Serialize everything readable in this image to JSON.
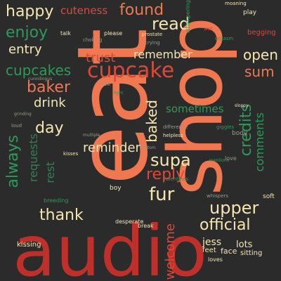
{
  "words": {
    "eat": "eat",
    "shop": "shop",
    "audio": "audio",
    "cupcake": "cupcake",
    "always": "always",
    "supa": "supa",
    "read": "read",
    "found": "found",
    "happy": "happy",
    "cuteness": "cuteness",
    "enjoy": "enjoy",
    "entry": "entry",
    "cupcakes": "cupcakes",
    "trust": "trust",
    "remember": "remember",
    "open": "open",
    "sum": "sum",
    "baker": "baker",
    "drink": "drink",
    "day": "day",
    "baked": "baked",
    "sometimes": "sometimes",
    "credits": "credits",
    "comments": "comments",
    "reminder": "reminder",
    "requests": "requests",
    "rest": "rest",
    "reply": "reply",
    "fur": "fur",
    "upper": "upper",
    "thank": "thank",
    "official": "official",
    "welcome": "welcome",
    "jess": "jess",
    "begging": "begging",
    "play": "play",
    "moaning": "moaning",
    "talk": "talk",
    "please": "please",
    "choking": "choking",
    "prostate": "prostate",
    "whimpering": "whimpering",
    "crying": "crying",
    "wet": "wet",
    "orgasm": "orgasm",
    "lots": "lots",
    "face": "face",
    "sitting": "sitting",
    "feet": "feet",
    "loves": "loves",
    "kissing": "kissing",
    "breeding": "breeding",
    "desperate": "desperate",
    "break": "break",
    "whispers": "whispers",
    "soft": "soft",
    "body": "body",
    "love": "love",
    "giggles": "giggles",
    "sloppy": "sloppy",
    "difference": "difference",
    "helpless": "helpless",
    "mentions": "mentions",
    "valentines": "valentines",
    "kisses": "kisses",
    "multiple": "multiple",
    "boy": "boy",
    "male": "male",
    "light": "light",
    "grinding": "grinding",
    "loud": "loud",
    "cunnilingus": "cunnilingus",
    "bottom": "bottom"
  }
}
